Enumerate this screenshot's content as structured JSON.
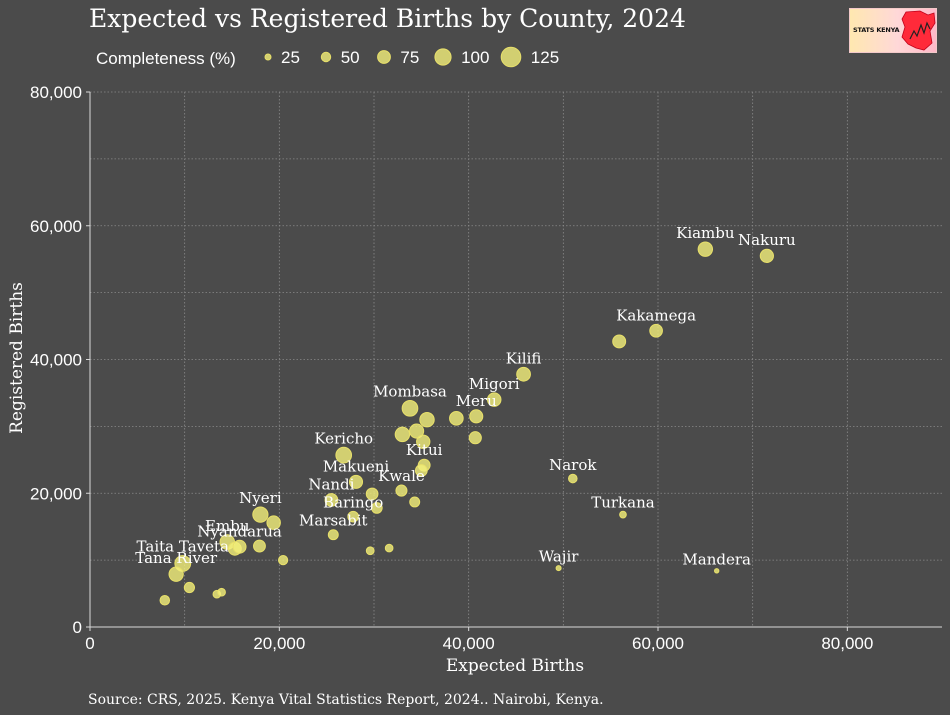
{
  "logo_text": "STATS KENYA",
  "source": "Source: CRS, 2025. Kenya Vital Statistics Report, 2024.. Nairobi, Kenya.",
  "chart_data": {
    "type": "scatter",
    "title": "Expected vs Registered Births by County, 2024",
    "xlabel": "Expected Births",
    "ylabel": "Registered Births",
    "xlim": [
      0,
      90000
    ],
    "ylim": [
      0,
      80000
    ],
    "x_ticks": [
      0,
      20000,
      40000,
      60000,
      80000
    ],
    "x_tick_labels": [
      "0",
      "20,000",
      "40,000",
      "60,000",
      "80,000"
    ],
    "y_ticks": [
      0,
      20000,
      40000,
      60000,
      80000
    ],
    "y_tick_labels": [
      "0",
      "20,000",
      "40,000",
      "60,000",
      "80,000"
    ],
    "size_legend": {
      "title": "Completeness (%)",
      "values": [
        25,
        50,
        75,
        100,
        125
      ],
      "labels": [
        "25",
        "50",
        "75",
        "100",
        "125"
      ]
    },
    "colors": {
      "point_fill": "#f4f07a",
      "point_stroke": "#e8e06a",
      "background": "#4b4b4b",
      "grid": "#8a8a8a",
      "text": "#ffffff"
    },
    "points": [
      {
        "label": "Nakuru",
        "x": 71500,
        "y": 55500,
        "size": 78
      },
      {
        "label": "Kiambu",
        "x": 65000,
        "y": 56500,
        "size": 87
      },
      {
        "label": "Kakamega",
        "x": 59800,
        "y": 44300,
        "size": 74
      },
      {
        "label": "",
        "x": 55900,
        "y": 42700,
        "size": 76
      },
      {
        "label": "Kilifi",
        "x": 45800,
        "y": 37800,
        "size": 82
      },
      {
        "label": "Migori",
        "x": 42700,
        "y": 34000,
        "size": 80
      },
      {
        "label": "Meru",
        "x": 40800,
        "y": 31500,
        "size": 77
      },
      {
        "label": "",
        "x": 38700,
        "y": 31200,
        "size": 81
      },
      {
        "label": "",
        "x": 40700,
        "y": 28300,
        "size": 70
      },
      {
        "label": "Mombasa",
        "x": 33800,
        "y": 32700,
        "size": 96
      },
      {
        "label": "",
        "x": 35600,
        "y": 31000,
        "size": 87
      },
      {
        "label": "",
        "x": 34500,
        "y": 29300,
        "size": 85
      },
      {
        "label": "",
        "x": 33000,
        "y": 28800,
        "size": 87
      },
      {
        "label": "",
        "x": 35200,
        "y": 27700,
        "size": 79
      },
      {
        "label": "Kitui",
        "x": 35300,
        "y": 24200,
        "size": 68
      },
      {
        "label": "",
        "x": 35000,
        "y": 23400,
        "size": 67
      },
      {
        "label": "Kericho",
        "x": 26800,
        "y": 25700,
        "size": 96
      },
      {
        "label": "Kwale",
        "x": 32900,
        "y": 20400,
        "size": 62
      },
      {
        "label": "",
        "x": 34300,
        "y": 18700,
        "size": 54
      },
      {
        "label": "Makueni",
        "x": 28100,
        "y": 21700,
        "size": 77
      },
      {
        "label": "",
        "x": 29800,
        "y": 19900,
        "size": 67
      },
      {
        "label": "Nandi",
        "x": 25500,
        "y": 19000,
        "size": 74
      },
      {
        "label": "",
        "x": 30300,
        "y": 17800,
        "size": 59
      },
      {
        "label": "Baringo",
        "x": 27800,
        "y": 16500,
        "size": 59
      },
      {
        "label": "Nyeri",
        "x": 18000,
        "y": 16800,
        "size": 93
      },
      {
        "label": "",
        "x": 19400,
        "y": 15600,
        "size": 80
      },
      {
        "label": "Marsabit",
        "x": 25700,
        "y": 13800,
        "size": 54
      },
      {
        "label": "Embu",
        "x": 14500,
        "y": 12700,
        "size": 88
      },
      {
        "label": "",
        "x": 15300,
        "y": 11700,
        "size": 76
      },
      {
        "label": "Nyandarua",
        "x": 15800,
        "y": 12000,
        "size": 76
      },
      {
        "label": "",
        "x": 17900,
        "y": 12100,
        "size": 68
      },
      {
        "label": "",
        "x": 31600,
        "y": 11800,
        "size": 37
      },
      {
        "label": "",
        "x": 29600,
        "y": 11400,
        "size": 38
      },
      {
        "label": "",
        "x": 20400,
        "y": 10000,
        "size": 49
      },
      {
        "label": "Taita Taveta",
        "x": 9800,
        "y": 9500,
        "size": 97
      },
      {
        "label": "Tana River",
        "x": 9100,
        "y": 7900,
        "size": 86
      },
      {
        "label": "",
        "x": 10500,
        "y": 5900,
        "size": 56
      },
      {
        "label": "",
        "x": 13400,
        "y": 4900,
        "size": 37
      },
      {
        "label": "",
        "x": 13900,
        "y": 5200,
        "size": 37
      },
      {
        "label": "",
        "x": 7900,
        "y": 4000,
        "size": 51
      },
      {
        "label": "Narok",
        "x": 51000,
        "y": 22200,
        "size": 44
      },
      {
        "label": "Turkana",
        "x": 56300,
        "y": 16800,
        "size": 30
      },
      {
        "label": "Wajir",
        "x": 49500,
        "y": 8800,
        "size": 18
      },
      {
        "label": "Mandera",
        "x": 66200,
        "y": 8400,
        "size": 13
      }
    ]
  }
}
